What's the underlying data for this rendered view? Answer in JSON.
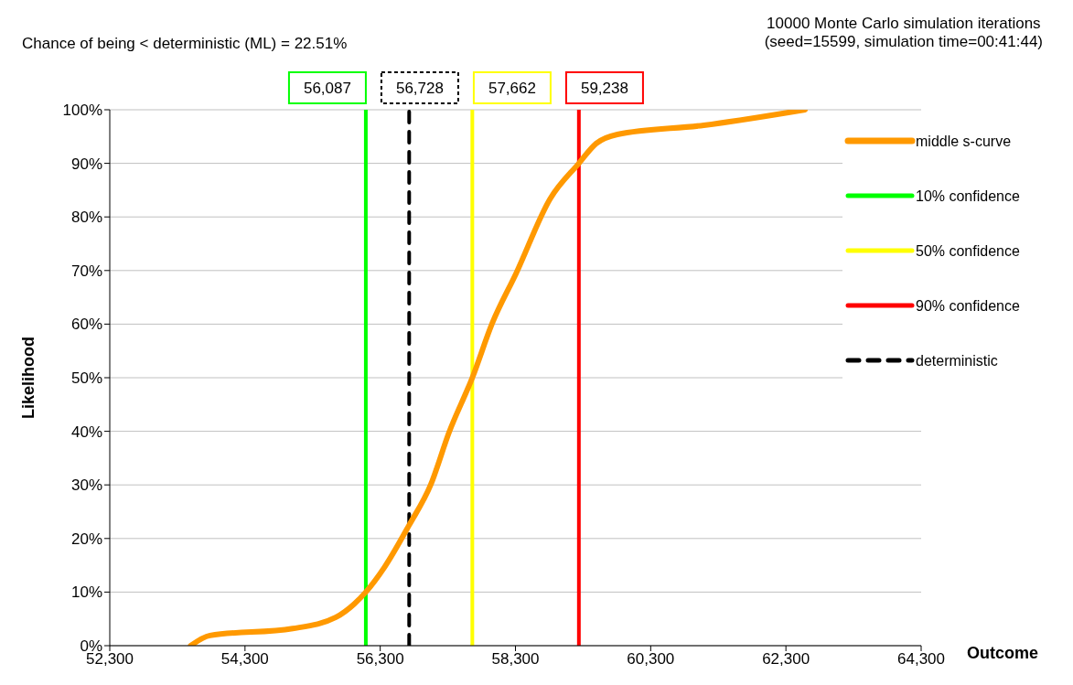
{
  "chart_data": {
    "type": "line",
    "annotations": [
      "Chance of being < deterministic (ML) = 22.51%",
      "10000 Monte Carlo simulation iterations",
      "(seed=15599, simulation time=00:41:44)",
      {
        "text": "56,087",
        "x": 56087,
        "y": 100
      },
      {
        "text": "56,728",
        "x": 56728,
        "y": 100
      },
      {
        "text": "57,662",
        "x": 57662,
        "y": 100
      },
      {
        "text": "59,238",
        "x": 59238,
        "y": 100
      }
    ],
    "xlabel": "Outcome",
    "ylabel": "Likelihood",
    "series": [
      {
        "name": "middle s-curve",
        "color": "#ff9900",
        "line_style": "solid",
        "x": [
          53497,
          53782,
          55006,
          55646,
          55918,
          56087,
          56366,
          56728,
          57046,
          57318,
          57662,
          57958,
          58311,
          58814,
          59238,
          59494,
          59807,
          61086,
          62582
        ],
        "values": [
          0,
          1.9,
          3.2,
          5.3,
          7.8,
          10,
          14.7,
          22.5,
          30,
          39.8,
          50,
          60.2,
          69.5,
          83.4,
          90,
          93.7,
          95.4,
          97.1,
          100
        ]
      },
      {
        "name": "10% confidence",
        "color": "#00ff00",
        "line_style": "solid",
        "x": [
          56087,
          56087
        ],
        "values": [
          0,
          100
        ]
      },
      {
        "name": "50% confidence",
        "color": "#ffff00",
        "line_style": "solid",
        "x": [
          57662,
          57662
        ],
        "values": [
          0,
          100
        ]
      },
      {
        "name": "90% confidence",
        "color": "#ff0000",
        "line_style": "solid",
        "x": [
          59238,
          59238
        ],
        "values": [
          0,
          100
        ]
      },
      {
        "name": "deterministic",
        "color": "#000000",
        "line_style": "dashed",
        "x": [
          56728,
          56728
        ],
        "values": [
          0,
          100
        ]
      }
    ],
    "xlim": [
      52300,
      64300
    ],
    "xticks": [
      {
        "value": 52300,
        "label": "52,300"
      },
      {
        "value": 54300,
        "label": "54,300"
      },
      {
        "value": 56300,
        "label": "56,300"
      },
      {
        "value": 58300,
        "label": "58,300"
      },
      {
        "value": 60300,
        "label": "60,300"
      },
      {
        "value": 62300,
        "label": "62,300"
      },
      {
        "value": 64300,
        "label": "64,300"
      }
    ],
    "ylim": [
      0,
      100
    ],
    "yticks": [
      {
        "value": 0,
        "label": "0%"
      },
      {
        "value": 10,
        "label": "10%"
      },
      {
        "value": 20,
        "label": "20%"
      },
      {
        "value": 30,
        "label": "30%"
      },
      {
        "value": 40,
        "label": "40%"
      },
      {
        "value": 50,
        "label": "50%"
      },
      {
        "value": 60,
        "label": "60%"
      },
      {
        "value": 70,
        "label": "70%"
      },
      {
        "value": 80,
        "label": "80%"
      },
      {
        "value": 90,
        "label": "90%"
      },
      {
        "value": 100,
        "label": "100%"
      }
    ],
    "grid": "y",
    "legend": "right",
    "marker": "none"
  }
}
